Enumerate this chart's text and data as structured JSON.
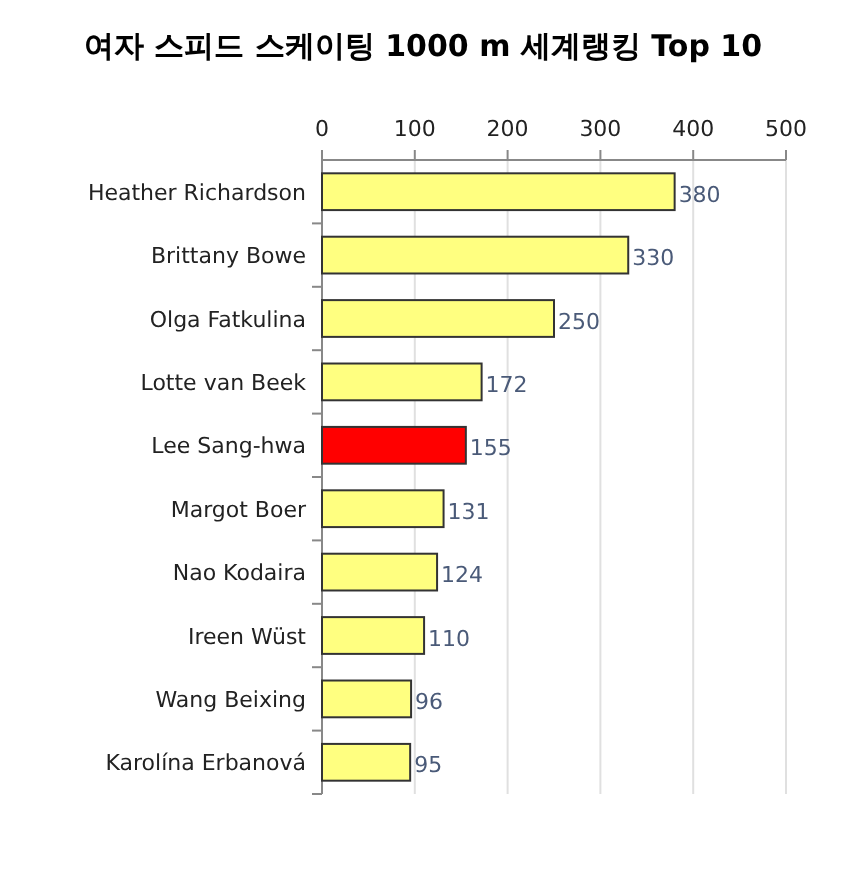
{
  "chart_data": {
    "type": "bar",
    "orientation": "horizontal",
    "title": "여자 스피드 스케이팅 1000 m 세계랭킹 Top 10",
    "categories": [
      "Heather Richardson",
      "Brittany Bowe",
      "Olga Fatkulina",
      "Lotte van Beek",
      "Lee Sang-hwa",
      "Margot Boer",
      "Nao Kodaira",
      "Ireen Wüst",
      "Wang Beixing",
      "Karolína Erbanová"
    ],
    "values": [
      380,
      330,
      250,
      172,
      155,
      131,
      124,
      110,
      96,
      95
    ],
    "colors": [
      "#ffff80",
      "#ffff80",
      "#ffff80",
      "#ffff80",
      "#ff0000",
      "#ffff80",
      "#ffff80",
      "#ffff80",
      "#ffff80",
      "#ffff80"
    ],
    "xlim": [
      0,
      500
    ],
    "xticks": [
      0,
      100,
      200,
      300,
      400,
      500
    ],
    "grid": "x",
    "data_labels": true
  }
}
